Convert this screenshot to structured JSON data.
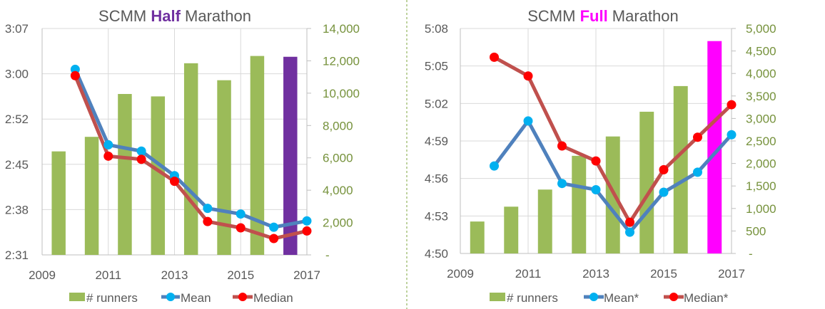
{
  "chart_data": [
    {
      "type": "bar+line",
      "title_prefix": "SCMM ",
      "title_highlight": "Half",
      "title_suffix": " Marathon",
      "highlight_color": "#7030a0",
      "x_ticks": [
        "2009",
        "2011",
        "2013",
        "2015",
        "2017"
      ],
      "xlim": [
        2009,
        2017
      ],
      "y_left_ticks": [
        "2:31",
        "2:38",
        "2:45",
        "2:52",
        "3:00",
        "3:07"
      ],
      "y_left_lim_minutes": [
        151,
        187
      ],
      "y_right_ticks": [
        "-",
        "2,000",
        "4,000",
        "6,000",
        "8,000",
        "10,000",
        "12,000",
        "14,000"
      ],
      "y_right_lim": [
        0,
        14000
      ],
      "years": [
        2010,
        2011,
        2012,
        2013,
        2014,
        2015,
        2016,
        2017
      ],
      "series": [
        {
          "name": "# runners",
          "kind": "bar",
          "color": "#9bbb59",
          "values": [
            6400,
            7300,
            9950,
            9800,
            11850,
            10800,
            12300,
            12250
          ]
        },
        {
          "name": "Mean",
          "kind": "line",
          "color": "#4f81bd",
          "marker": "#00b0f0",
          "values_minutes": [
            180.5,
            168.5,
            167.5,
            163.6,
            158.4,
            157.5,
            155.4,
            156.4
          ]
        },
        {
          "name": "Median",
          "kind": "line",
          "color": "#c0504d",
          "marker": "#ff0000",
          "values_minutes": [
            179.5,
            166.7,
            166.2,
            162.7,
            156.3,
            155.3,
            153.6,
            154.8
          ]
        }
      ],
      "grid": true,
      "legend_position": "bottom"
    },
    {
      "type": "bar+line",
      "title_prefix": "SCMM ",
      "title_highlight": "Full",
      "title_suffix": " Marathon",
      "highlight_color": "#ff00ff",
      "x_ticks": [
        "2009",
        "2011",
        "2013",
        "2015",
        "2017"
      ],
      "xlim": [
        2009,
        2017
      ],
      "y_left_ticks": [
        "4:50",
        "4:53",
        "4:56",
        "4:59",
        "5:02",
        "5:05",
        "5:08"
      ],
      "y_left_lim_minutes": [
        290,
        308
      ],
      "y_right_ticks": [
        "-",
        "500",
        "1,000",
        "1,500",
        "2,000",
        "2,500",
        "3,000",
        "3,500",
        "4,000",
        "4,500",
        "5,000"
      ],
      "y_right_lim": [
        0,
        5000
      ],
      "years": [
        2010,
        2011,
        2012,
        2013,
        2014,
        2015,
        2016,
        2017
      ],
      "series": [
        {
          "name": "# runners",
          "kind": "bar",
          "color": "#9bbb59",
          "values": [
            710,
            1040,
            1420,
            2170,
            2600,
            3150,
            3720,
            4720
          ]
        },
        {
          "name": "Mean*",
          "kind": "line",
          "color": "#4f81bd",
          "marker": "#00b0f0",
          "values_minutes": [
            297.0,
            300.6,
            295.6,
            295.1,
            291.7,
            294.9,
            296.5,
            299.5
          ]
        },
        {
          "name": "Median*",
          "kind": "line",
          "color": "#c0504d",
          "marker": "#ff0000",
          "values_minutes": [
            305.7,
            304.2,
            298.6,
            297.4,
            292.5,
            296.7,
            299.3,
            301.9
          ]
        }
      ],
      "grid": true,
      "legend_position": "bottom"
    }
  ]
}
